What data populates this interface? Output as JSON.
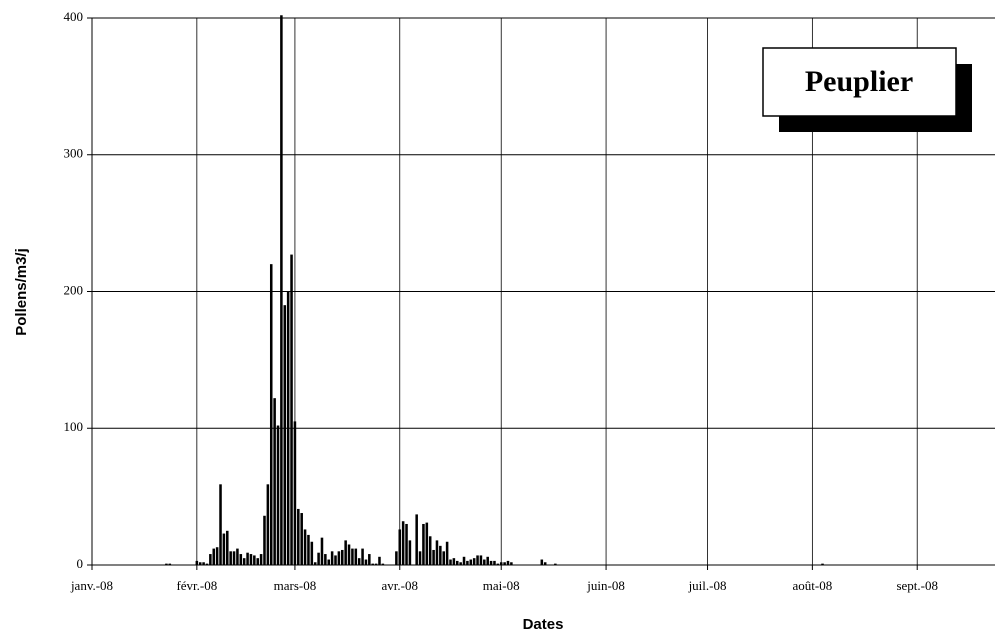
{
  "chart_data": {
    "type": "bar",
    "title": "Peuplier",
    "x_label": "Dates",
    "y_label": "Pollens/m3/j",
    "x": [
      22,
      23,
      31,
      32,
      33,
      34,
      35,
      36,
      37,
      38,
      39,
      40,
      41,
      42,
      43,
      44,
      45,
      46,
      47,
      48,
      49,
      50,
      51,
      52,
      53,
      54,
      55,
      56,
      57,
      58,
      59,
      60,
      61,
      62,
      63,
      64,
      65,
      66,
      67,
      68,
      69,
      70,
      71,
      72,
      73,
      74,
      75,
      76,
      77,
      78,
      79,
      80,
      81,
      82,
      83,
      84,
      85,
      86,
      90,
      91,
      92,
      93,
      94,
      96,
      97,
      98,
      99,
      100,
      101,
      102,
      103,
      104,
      105,
      106,
      107,
      108,
      109,
      110,
      111,
      112,
      113,
      114,
      115,
      116,
      117,
      118,
      119,
      120,
      121,
      122,
      123,
      124,
      133,
      134,
      137,
      216
    ],
    "values": [
      1,
      1,
      3,
      2,
      2,
      1,
      8,
      12,
      13,
      59,
      23,
      25,
      10,
      10,
      12,
      8,
      5,
      9,
      8,
      7,
      5,
      8,
      36,
      59,
      220,
      122,
      102,
      402,
      190,
      200,
      227,
      105,
      41,
      38,
      26,
      22,
      17,
      2,
      9,
      20,
      8,
      4,
      10,
      7,
      10,
      11,
      18,
      15,
      12,
      12,
      5,
      12,
      4,
      8,
      1,
      1,
      6,
      1,
      10,
      26,
      32,
      30,
      18,
      37,
      10,
      30,
      31,
      21,
      11,
      18,
      14,
      10,
      17,
      4,
      5,
      3,
      2,
      6,
      3,
      4,
      5,
      7,
      7,
      4,
      6,
      3,
      3,
      1,
      2,
      2,
      3,
      2,
      4,
      2,
      1,
      1
    ],
    "color": "#000000",
    "xlim": [
      0,
      267
    ],
    "xticks": [
      {
        "value": 0,
        "label": "janv.-08"
      },
      {
        "value": 31,
        "label": "févr.-08"
      },
      {
        "value": 60,
        "label": "mars-08"
      },
      {
        "value": 91,
        "label": "avr.-08"
      },
      {
        "value": 121,
        "label": "mai-08"
      },
      {
        "value": 152,
        "label": "juin-08"
      },
      {
        "value": 182,
        "label": "juil.-08"
      },
      {
        "value": 213,
        "label": "août-08"
      },
      {
        "value": 244,
        "label": "sept.-08"
      }
    ],
    "ylim": [
      0,
      400
    ],
    "yticks": [
      0,
      100,
      200,
      300,
      400
    ],
    "grid": true
  }
}
